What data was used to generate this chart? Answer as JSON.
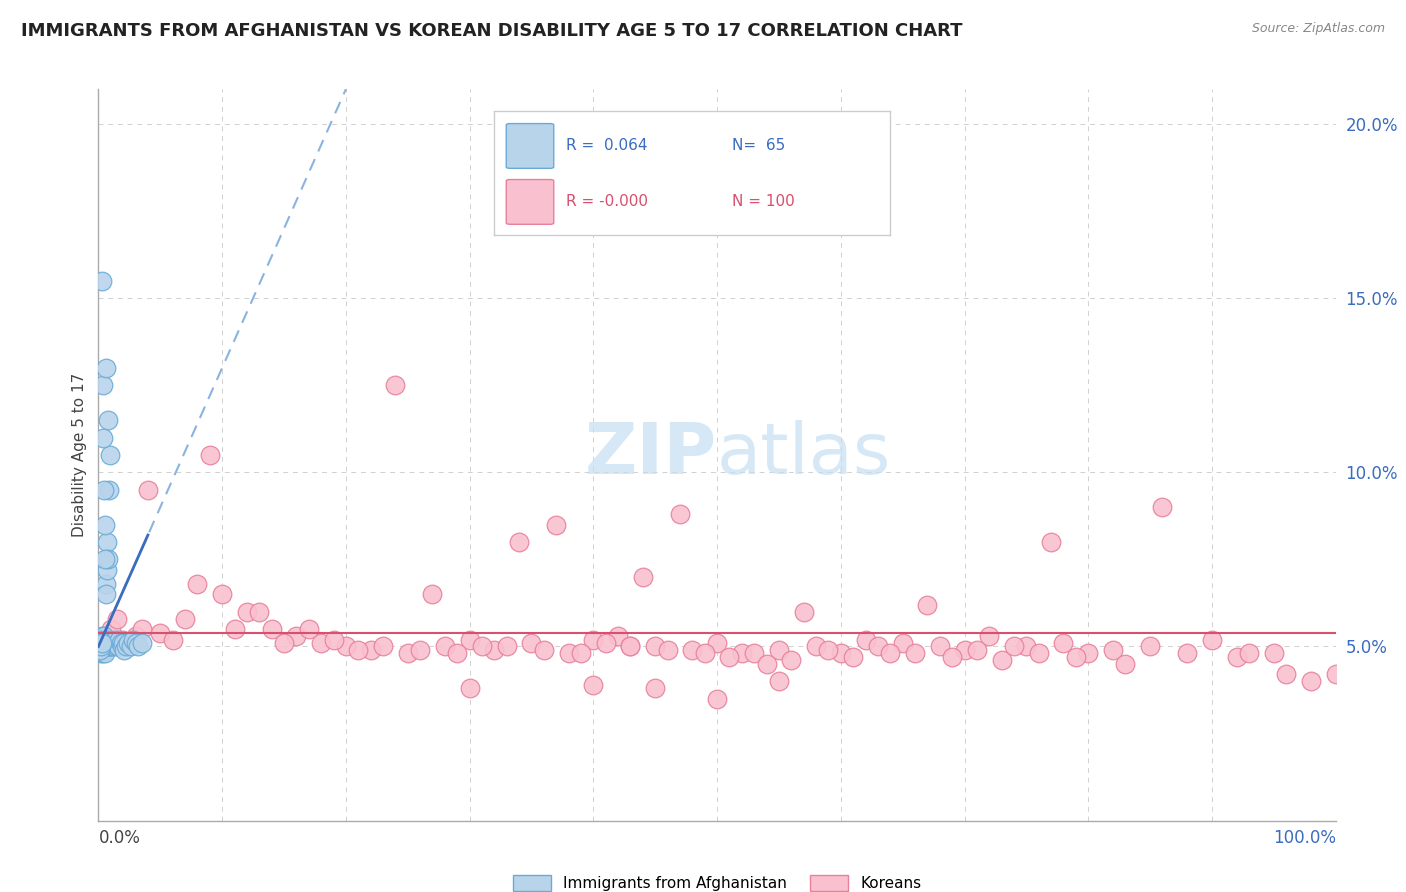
{
  "title": "IMMIGRANTS FROM AFGHANISTAN VS KOREAN DISABILITY AGE 5 TO 17 CORRELATION CHART",
  "source": "Source: ZipAtlas.com",
  "ylabel": "Disability Age 5 to 17",
  "xlim": [
    0,
    100
  ],
  "ylim": [
    0,
    21
  ],
  "afg_color": "#b8d4eb",
  "afg_edge_color": "#6aabd6",
  "korean_color": "#f9c0cf",
  "korean_edge_color": "#e8809a",
  "trend_afg_color": "#3a6cbf",
  "trend_afg_dashed_color": "#8ab4df",
  "trend_korean_color": "#d94f6e",
  "watermark_color": "#c5dff2",
  "background_color": "#ffffff",
  "grid_color": "#d0d0d0",
  "afg_x": [
    0.1,
    0.15,
    0.18,
    0.2,
    0.22,
    0.25,
    0.28,
    0.3,
    0.32,
    0.35,
    0.38,
    0.4,
    0.42,
    0.45,
    0.48,
    0.5,
    0.52,
    0.55,
    0.58,
    0.6,
    0.62,
    0.65,
    0.68,
    0.7,
    0.72,
    0.75,
    0.78,
    0.8,
    0.82,
    0.85,
    0.88,
    0.9,
    0.95,
    1.0,
    1.1,
    1.2,
    1.3,
    1.4,
    1.5,
    1.6,
    1.7,
    1.8,
    1.9,
    2.0,
    2.1,
    2.2,
    2.4,
    2.6,
    2.8,
    3.0,
    3.2,
    3.5,
    0.05,
    0.08,
    0.12,
    0.15,
    0.2,
    0.25,
    0.3,
    0.35,
    0.4,
    0.45,
    0.5,
    0.55,
    0.6
  ],
  "afg_y": [
    5.0,
    5.1,
    4.9,
    5.2,
    4.8,
    5.3,
    5.0,
    4.9,
    5.1,
    5.2,
    4.8,
    5.0,
    5.3,
    4.9,
    5.1,
    5.0,
    5.2,
    4.8,
    6.8,
    5.0,
    6.5,
    5.1,
    7.2,
    5.0,
    8.0,
    7.5,
    5.2,
    11.5,
    5.0,
    5.1,
    9.5,
    10.5,
    5.0,
    5.0,
    5.1,
    5.0,
    5.2,
    5.0,
    5.1,
    5.0,
    5.2,
    5.1,
    5.0,
    5.1,
    4.9,
    5.0,
    5.1,
    5.0,
    5.2,
    5.1,
    5.0,
    5.1,
    5.0,
    5.1,
    4.9,
    5.2,
    5.0,
    5.1,
    15.5,
    12.5,
    11.0,
    9.5,
    8.5,
    7.5,
    13.0
  ],
  "korean_x": [
    1.0,
    2.0,
    3.0,
    5.0,
    7.0,
    10.0,
    12.0,
    14.0,
    16.0,
    18.0,
    20.0,
    22.0,
    25.0,
    28.0,
    30.0,
    32.0,
    35.0,
    38.0,
    40.0,
    42.0,
    45.0,
    48.0,
    50.0,
    52.0,
    55.0,
    58.0,
    60.0,
    62.0,
    65.0,
    68.0,
    70.0,
    72.0,
    75.0,
    78.0,
    80.0,
    85.0,
    90.0,
    95.0,
    1.5,
    3.5,
    6.0,
    8.0,
    11.0,
    13.0,
    15.0,
    17.0,
    19.0,
    21.0,
    23.0,
    26.0,
    29.0,
    31.0,
    33.0,
    36.0,
    39.0,
    41.0,
    43.0,
    46.0,
    49.0,
    51.0,
    53.0,
    56.0,
    59.0,
    61.0,
    63.0,
    66.0,
    69.0,
    71.0,
    73.0,
    76.0,
    79.0,
    82.0,
    88.0,
    92.0,
    98.0,
    4.0,
    9.0,
    24.0,
    27.0,
    34.0,
    37.0,
    44.0,
    47.0,
    54.0,
    57.0,
    64.0,
    67.0,
    74.0,
    77.0,
    83.0,
    86.0,
    93.0,
    96.0,
    100.0,
    30.0,
    40.0,
    50.0,
    45.0,
    55.0,
    43.0
  ],
  "korean_y": [
    5.5,
    5.2,
    5.3,
    5.4,
    5.8,
    6.5,
    6.0,
    5.5,
    5.3,
    5.1,
    5.0,
    4.9,
    4.8,
    5.0,
    5.2,
    4.9,
    5.1,
    4.8,
    5.2,
    5.3,
    5.0,
    4.9,
    5.1,
    4.8,
    4.9,
    5.0,
    4.8,
    5.2,
    5.1,
    5.0,
    4.9,
    5.3,
    5.0,
    5.1,
    4.8,
    5.0,
    5.2,
    4.8,
    5.8,
    5.5,
    5.2,
    6.8,
    5.5,
    6.0,
    5.1,
    5.5,
    5.2,
    4.9,
    5.0,
    4.9,
    4.8,
    5.0,
    5.0,
    4.9,
    4.8,
    5.1,
    5.0,
    4.9,
    4.8,
    4.7,
    4.8,
    4.6,
    4.9,
    4.7,
    5.0,
    4.8,
    4.7,
    4.9,
    4.6,
    4.8,
    4.7,
    4.9,
    4.8,
    4.7,
    4.0,
    9.5,
    10.5,
    12.5,
    6.5,
    8.0,
    8.5,
    7.0,
    8.8,
    4.5,
    6.0,
    4.8,
    6.2,
    5.0,
    8.0,
    4.5,
    9.0,
    4.8,
    4.2,
    4.2,
    3.8,
    3.9,
    3.5,
    3.8,
    4.0,
    5.0
  ]
}
